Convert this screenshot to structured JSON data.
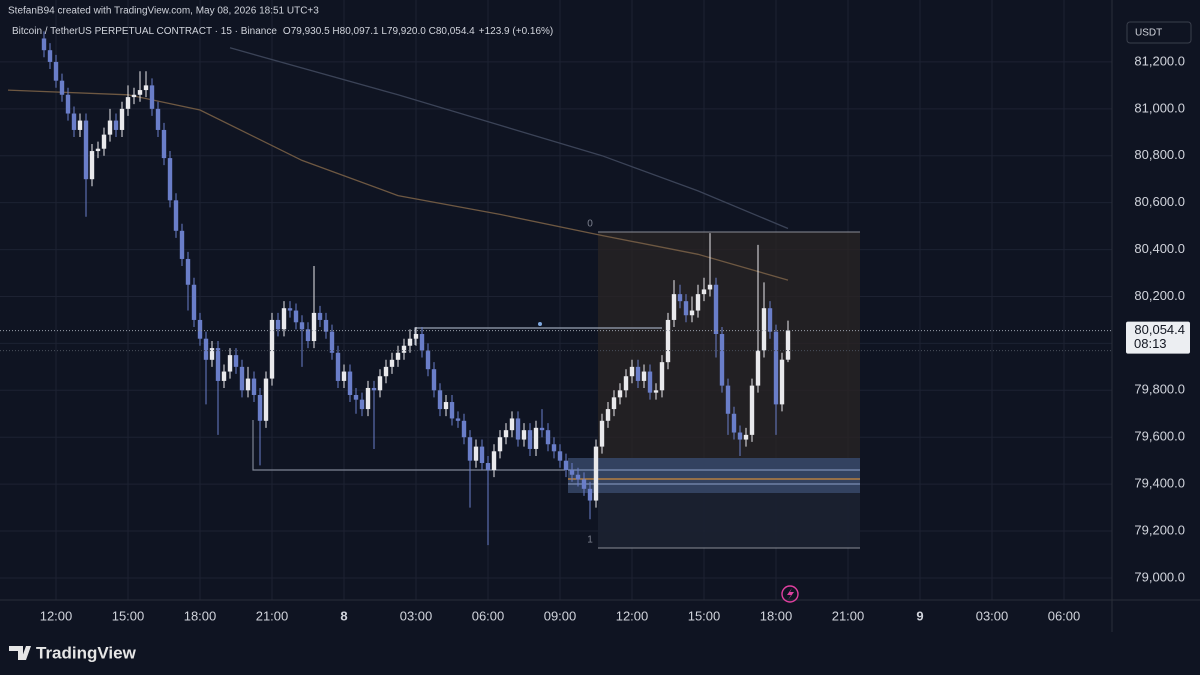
{
  "header": {
    "credit": "StefanB94 created with TradingView.com, May 08, 2026 18:51 UTC+3",
    "symbol": "Bitcoin / TetherUS PERPETUAL CONTRACT · 15 · Binance",
    "ohlc": "O79,930.5 H80,097.1 L79,920.0 C80,054.4",
    "change": "+123.9 (+0.16%)",
    "currency": "USDT"
  },
  "footer": {
    "brand": "TradingView"
  },
  "drawings": {
    "range_top": "0",
    "range_bottom": "1"
  },
  "chart_data": {
    "type": "candlestick",
    "up_color": "#e9e9ec",
    "down_color": "#6a7ec9",
    "grid": true,
    "xlim": [
      -6,
      178
    ],
    "xticks": [
      {
        "value": 2,
        "label": "12:00"
      },
      {
        "value": 14,
        "label": "15:00"
      },
      {
        "value": 26,
        "label": "18:00"
      },
      {
        "value": 38,
        "label": "21:00"
      },
      {
        "value": 50,
        "label": "8"
      },
      {
        "value": 62,
        "label": "03:00"
      },
      {
        "value": 74,
        "label": "06:00"
      },
      {
        "value": 86,
        "label": "09:00"
      },
      {
        "value": 98,
        "label": "12:00"
      },
      {
        "value": 110,
        "label": "15:00"
      },
      {
        "value": 122,
        "label": "18:00"
      },
      {
        "value": 134,
        "label": "21:00"
      },
      {
        "value": 146,
        "label": "9"
      },
      {
        "value": 158,
        "label": "03:00"
      },
      {
        "value": 170,
        "label": "06:00"
      }
    ],
    "ylim": [
      78906,
      81464
    ],
    "yticks": [
      {
        "value": 79000,
        "label": "79,000.0"
      },
      {
        "value": 79200,
        "label": "79,200.0"
      },
      {
        "value": 79400,
        "label": "79,400.0"
      },
      {
        "value": 79600,
        "label": "79,600.0"
      },
      {
        "value": 79800,
        "label": "79,800.0"
      },
      {
        "value": 80000,
        "label": "80,000.0"
      },
      {
        "value": 80200,
        "label": "80,200.0"
      },
      {
        "value": 80400,
        "label": "80,400.0"
      },
      {
        "value": 80600,
        "label": "80,600.0"
      },
      {
        "value": 80800,
        "label": "80,800.0"
      },
      {
        "value": 81000,
        "label": "81,000.0"
      },
      {
        "value": 81200,
        "label": "81,200.0"
      }
    ],
    "open": [
      81300,
      81250,
      81200,
      81120,
      81060,
      80980,
      80910,
      80950,
      80700,
      80820,
      80830,
      80890,
      80950,
      80910,
      81000,
      81050,
      81060,
      81080,
      81100,
      81000,
      80910,
      80790,
      80610,
      80480,
      80360,
      80250,
      80100,
      80020,
      79930,
      79980,
      79840,
      79880,
      79950,
      79900,
      79800,
      79850,
      79780,
      79670,
      79850,
      80100,
      80060,
      80150,
      80140,
      80090,
      80060,
      80010,
      80130,
      80100,
      80050,
      79960,
      79840,
      79880,
      79780,
      79760,
      79720,
      79810,
      79800,
      79860,
      79900,
      79930,
      79960,
      79990,
      80020,
      80040,
      79970,
      79890,
      79800,
      79720,
      79750,
      79680,
      79670,
      79600,
      79500,
      79560,
      79490,
      79460,
      79540,
      79600,
      79630,
      79680,
      79590,
      79630,
      79550,
      79640,
      79630,
      79570,
      79540,
      79500,
      79460,
      79440,
      79420,
      79380,
      79330,
      79560,
      79670,
      79720,
      79770,
      79800,
      79860,
      79900,
      79840,
      79880,
      79790,
      79800,
      79920,
      80100,
      80210,
      80180,
      80120,
      80140,
      80210,
      80230,
      80250,
      80040,
      79820,
      79700,
      79620,
      79590,
      79610,
      79820,
      79970,
      80150,
      80050,
      79740,
      79930.5
    ],
    "high": [
      81330,
      81280,
      81230,
      81150,
      81090,
      81010,
      80980,
      80980,
      80850,
      80860,
      80920,
      81000,
      80980,
      81030,
      81100,
      81090,
      81160,
      81160,
      81130,
      81030,
      80940,
      80820,
      80640,
      80510,
      80390,
      80280,
      80130,
      80050,
      80010,
      80010,
      79910,
      79980,
      79980,
      79930,
      79900,
      79880,
      79810,
      79880,
      80130,
      80130,
      80180,
      80180,
      80170,
      80120,
      80090,
      80330,
      80160,
      80130,
      80080,
      79990,
      79910,
      79910,
      79810,
      79790,
      79840,
      79840,
      79890,
      79930,
      79960,
      79990,
      80020,
      80060,
      80070,
      80070,
      80000,
      79920,
      79830,
      79780,
      79780,
      79710,
      79700,
      79630,
      79590,
      79590,
      79520,
      79570,
      79630,
      79660,
      79710,
      79710,
      79660,
      79660,
      79670,
      79720,
      79660,
      79600,
      79570,
      79530,
      79490,
      79470,
      79450,
      79410,
      79590,
      79700,
      79750,
      79800,
      79830,
      79890,
      79930,
      79930,
      79910,
      79910,
      79830,
      79950,
      80130,
      80270,
      80250,
      80210,
      80200,
      80250,
      80280,
      80470,
      80280,
      80070,
      79850,
      79730,
      79650,
      79640,
      79850,
      80420,
      80260,
      80180,
      80080,
      79960,
      80097.1
    ],
    "low": [
      81220,
      81170,
      81090,
      81030,
      80950,
      80880,
      80880,
      80540,
      80670,
      80790,
      80800,
      80860,
      80880,
      80880,
      80970,
      81020,
      81030,
      81050,
      80970,
      80880,
      80760,
      80580,
      80450,
      80330,
      80140,
      80070,
      79990,
      79740,
      79900,
      79610,
      79810,
      79850,
      79870,
      79770,
      79770,
      79750,
      79480,
      79640,
      79820,
      80030,
      80030,
      80110,
      80060,
      79900,
      79980,
      79980,
      80070,
      80020,
      79930,
      79810,
      79810,
      79750,
      79700,
      79690,
      79690,
      79550,
      79770,
      79830,
      79870,
      79900,
      79930,
      79960,
      79990,
      79940,
      79860,
      79770,
      79690,
      79690,
      79650,
      79640,
      79570,
      79300,
      79470,
      79460,
      79140,
      79430,
      79510,
      79570,
      79600,
      79560,
      79560,
      79520,
      79520,
      79600,
      79540,
      79510,
      79470,
      79430,
      79410,
      79390,
      79350,
      79250,
      79300,
      79530,
      79640,
      79690,
      79740,
      79770,
      79830,
      79810,
      79810,
      79760,
      79760,
      79770,
      79890,
      80070,
      80150,
      80090,
      80090,
      80110,
      80180,
      80200,
      79940,
      79790,
      79610,
      79590,
      79520,
      79560,
      79580,
      79790,
      79940,
      80020,
      79610,
      79710,
      79920
    ],
    "close": [
      81250,
      81200,
      81120,
      81060,
      80980,
      80910,
      80950,
      80700,
      80820,
      80830,
      80890,
      80950,
      80910,
      81000,
      81050,
      81060,
      81080,
      81100,
      81000,
      80910,
      80790,
      80610,
      80480,
      80360,
      80250,
      80100,
      80020,
      79930,
      79980,
      79840,
      79880,
      79950,
      79900,
      79800,
      79850,
      79780,
      79670,
      79850,
      80100,
      80060,
      80150,
      80140,
      80090,
      80060,
      80010,
      80130,
      80100,
      80050,
      79960,
      79840,
      79880,
      79780,
      79760,
      79720,
      79810,
      79800,
      79860,
      79900,
      79930,
      79960,
      79990,
      80020,
      80040,
      79970,
      79890,
      79800,
      79720,
      79750,
      79680,
      79670,
      79600,
      79500,
      79560,
      79490,
      79460,
      79540,
      79600,
      79630,
      79680,
      79590,
      79630,
      79550,
      79640,
      79630,
      79570,
      79540,
      79500,
      79460,
      79440,
      79420,
      79380,
      79330,
      79560,
      79670,
      79720,
      79770,
      79800,
      79860,
      79900,
      79840,
      79880,
      79790,
      79800,
      79920,
      80100,
      80210,
      80180,
      80120,
      80140,
      80210,
      80230,
      80250,
      80040,
      79820,
      79700,
      79620,
      79590,
      79610,
      79820,
      79970,
      80150,
      80050,
      79740,
      79930.5,
      80054.4
    ],
    "lines": [
      {
        "color": "#6e5842",
        "x": [
          -6,
          14,
          26,
          43,
          59,
          76,
          93,
          109,
          124
        ],
        "values": [
          81080,
          81060,
          80995,
          80780,
          80630,
          80550,
          80460,
          80380,
          80270
        ]
      },
      {
        "color": "#3b4357",
        "x": [
          31,
          59,
          76,
          93,
          109,
          124
        ],
        "values": [
          81260,
          81060,
          80930,
          80800,
          80650,
          80490
        ]
      }
    ],
    "price_tag": {
      "label": "80,054.4",
      "countdown": "08:13"
    }
  }
}
